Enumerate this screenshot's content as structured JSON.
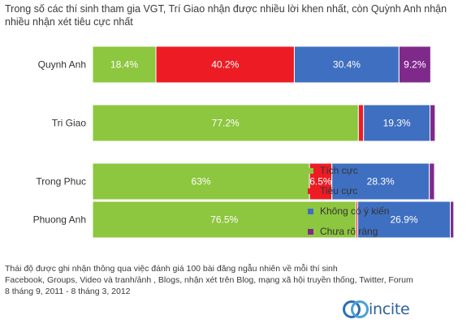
{
  "title_lines": [
    "Trong số các thí sinh tham gia VGT, Trí Giao nhận được nhiều lời khen nhất, còn Quỳnh Anh nhận",
    "nhiều nhận xét tiêu cực nhất"
  ],
  "footer_lines": [
    "Thái độ được ghi nhận thông qua việc đánh giá 100 bài đăng ngẫu nhiên về mỗi thí sinh",
    "Facebook, Groups, Video và tranh/ảnh , Blogs, nhận xét trên Blog, mạng xã hội truyền thống, Twitter, Forum",
    "8 tháng 9, 2011 - 8 tháng 3, 2012"
  ],
  "logo_text": "incite",
  "colors": {
    "positive": "#8dc63f",
    "negative": "#ed1c24",
    "neutral": "#3f6fc0",
    "unclear": "#7f2a8a"
  },
  "chart_data": {
    "type": "bar",
    "orientation": "horizontal",
    "stacked": true,
    "categories": [
      "Quynh Anh",
      "Tri Giao",
      "Trong Phuc",
      "Phuong Anh"
    ],
    "series": [
      {
        "name": "Tích cực",
        "color": "#8dc63f",
        "values": [
          18.4,
          77.2,
          63,
          76.5
        ],
        "labels": [
          "18.4%",
          "77.2%",
          "63%",
          "76.5%"
        ]
      },
      {
        "name": "Tiêu cực",
        "color": "#ed1c24",
        "values": [
          40.2,
          1.5,
          6.5,
          0.5
        ],
        "labels": [
          "40.2%",
          "",
          "6.5%",
          ""
        ]
      },
      {
        "name": "Không có ý kiến",
        "color": "#3f6fc0",
        "values": [
          30.4,
          19.3,
          28.3,
          26.9
        ],
        "labels": [
          "30.4%",
          "19.3%",
          "28.3%",
          "26.9%"
        ]
      },
      {
        "name": "Chưa rõ ràng",
        "color": "#7f2a8a",
        "values": [
          9.2,
          1.5,
          1.5,
          1.0
        ],
        "labels": [
          "9.2%",
          "",
          "",
          ""
        ]
      }
    ],
    "xlim": [
      0,
      100
    ],
    "legend_position": "bottom-right"
  }
}
